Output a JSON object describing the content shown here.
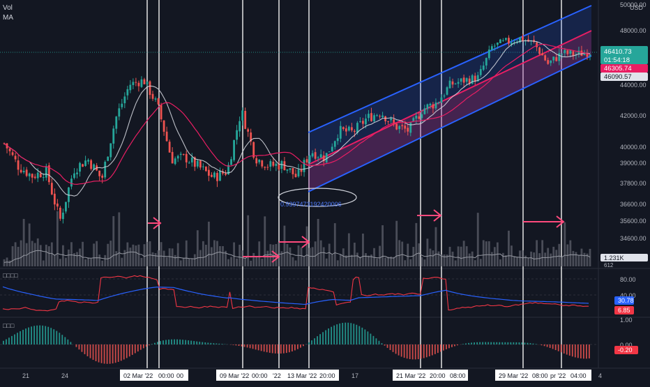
{
  "header": {
    "vol_label": "Vol",
    "ma_label": "MA",
    "currency": "USD"
  },
  "price_axis": {
    "ticks": [
      "50000.00",
      "48000.00",
      "44000.00",
      "42000.00",
      "40000.00",
      "39000.00",
      "37800.00",
      "36600.00",
      "35600.00",
      "34600.00"
    ],
    "last_price": "46410.73",
    "countdown": "01:54:18",
    "ma_value_1": "46305.74",
    "ma_value_2": "46090.57",
    "volume_value": "1.231K",
    "volume_ma_value": "612"
  },
  "indicator1": {
    "title": "□□□□",
    "ticks": [
      "80.00",
      "40.00"
    ],
    "value_blue": "30.78",
    "value_red": "6.85"
  },
  "indicator2": {
    "title": "□□□",
    "ticks": [
      "1.00",
      "0.00"
    ],
    "value": "-0.20"
  },
  "time_axis": {
    "labels": [
      "21",
      "24",
      "02 Mar '22",
      "00:00",
      "00",
      "09 Mar '22",
      "00:00",
      "'22",
      "13 Mar '22",
      "20:00",
      "17",
      "21 Mar '22",
      "20:00",
      "08:00",
      "29 Mar '22",
      "08:00",
      "pr '22",
      "04:00",
      "4"
    ]
  },
  "annotations": {
    "ellipse_text": "0.9397473192420006"
  },
  "colors": {
    "background": "#131722",
    "bull": "#26a69a",
    "bear": "#ef5350",
    "channel_blue": "#2962ff",
    "channel_red": "#e91e63",
    "ma_white": "#d1d4dc",
    "ma_red": "#e91e63",
    "rsi_red": "#f23645",
    "rsi_blue": "#2962ff",
    "arrow": "#ff4a7d",
    "price_badge": "#26a69a"
  },
  "chart_data": {
    "type": "candlestick",
    "symbol_currency": "USD",
    "x_range": [
      "Feb 20 '22",
      "Apr 4 '22"
    ],
    "y_range": [
      34000,
      50000
    ],
    "price_path": [
      {
        "x": "Feb 20",
        "y": 40200
      },
      {
        "x": "Feb 21",
        "y": 38800
      },
      {
        "x": "Feb 22",
        "y": 38200
      },
      {
        "x": "Feb 23",
        "y": 38500
      },
      {
        "x": "Feb 24",
        "y": 35600
      },
      {
        "x": "Feb 25",
        "y": 38600
      },
      {
        "x": "Feb 26",
        "y": 39200
      },
      {
        "x": "Feb 27",
        "y": 38000
      },
      {
        "x": "Feb 28",
        "y": 41800
      },
      {
        "x": "Mar 01",
        "y": 44000
      },
      {
        "x": "Mar 02",
        "y": 44300
      },
      {
        "x": "Mar 03",
        "y": 42600
      },
      {
        "x": "Mar 04",
        "y": 39200
      },
      {
        "x": "Mar 05",
        "y": 39300
      },
      {
        "x": "Mar 06",
        "y": 38700
      },
      {
        "x": "Mar 07",
        "y": 38100
      },
      {
        "x": "Mar 08",
        "y": 38500
      },
      {
        "x": "Mar 09",
        "y": 42300
      },
      {
        "x": "Mar 10",
        "y": 39300
      },
      {
        "x": "Mar 11",
        "y": 38800
      },
      {
        "x": "Mar 12",
        "y": 38900
      },
      {
        "x": "Mar 13",
        "y": 38100
      },
      {
        "x": "Mar 14",
        "y": 39700
      },
      {
        "x": "Mar 15",
        "y": 39300
      },
      {
        "x": "Mar 16",
        "y": 41000
      },
      {
        "x": "Mar 17",
        "y": 40900
      },
      {
        "x": "Mar 18",
        "y": 41800
      },
      {
        "x": "Mar 19",
        "y": 42200
      },
      {
        "x": "Mar 20",
        "y": 41300
      },
      {
        "x": "Mar 21",
        "y": 41000
      },
      {
        "x": "Mar 22",
        "y": 42400
      },
      {
        "x": "Mar 23",
        "y": 42800
      },
      {
        "x": "Mar 24",
        "y": 44000
      },
      {
        "x": "Mar 25",
        "y": 44300
      },
      {
        "x": "Mar 26",
        "y": 44500
      },
      {
        "x": "Mar 27",
        "y": 46800
      },
      {
        "x": "Mar 28",
        "y": 47100
      },
      {
        "x": "Mar 29",
        "y": 47400
      },
      {
        "x": "Mar 30",
        "y": 47000
      },
      {
        "x": "Mar 31",
        "y": 45500
      },
      {
        "x": "Apr 01",
        "y": 46300
      },
      {
        "x": "Apr 02",
        "y": 46200
      },
      {
        "x": "Apr 03",
        "y": 46410
      }
    ],
    "last_price": 46410.73,
    "ma_values": [
      46305.74,
      46090.57
    ],
    "volume_last": "1.231K"
  }
}
